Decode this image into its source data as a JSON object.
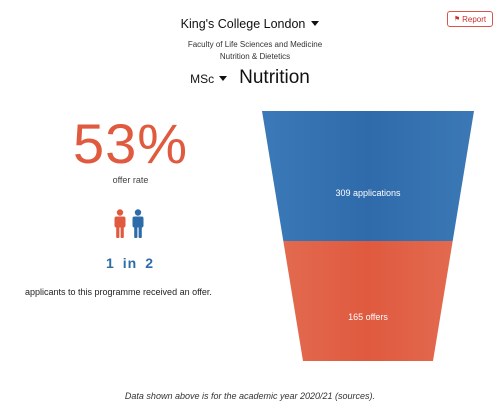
{
  "report": {
    "label": "Report",
    "icon": "flag-icon",
    "color": "#c9302c"
  },
  "institution": {
    "name": "King's College London"
  },
  "faculty": {
    "name": "Faculty of Life Sciences and Medicine",
    "department": "Nutrition & Dietetics"
  },
  "course": {
    "degree": "MSc",
    "subject": "Nutrition"
  },
  "stats": {
    "offer_rate": "53%",
    "offer_rate_label": "offer rate",
    "ratio_numerator": "1",
    "ratio_word": "in",
    "ratio_denominator": "2",
    "summary": "applicants to this programme received an offer."
  },
  "funnel": {
    "applications": 309,
    "applications_label": "309 applications",
    "offers": 165,
    "offers_label": "165 offers",
    "applications_color": "#2f6bab",
    "offers_color": "#e05a3f"
  },
  "footer": {
    "text": "Data shown above is for the academic year 2020/21 (sources)."
  },
  "colors": {
    "accent": "#e05a3f",
    "blue": "#2d6ca8"
  }
}
